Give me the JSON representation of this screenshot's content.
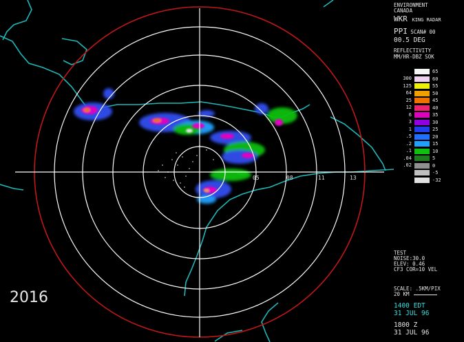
{
  "header": {
    "agency_line1": "ENVIRONMENT",
    "agency_line2": "CANADA",
    "station": "WKR",
    "station_name": "KING RADAR"
  },
  "scan": {
    "mode": "PPI",
    "scan_label": "SCAN# 00",
    "angle": "00.5 DEG",
    "product": "REFLECTIVITY",
    "units": "MM/HR-DBZ",
    "units_extra": "SOK"
  },
  "legend": {
    "left_values": [
      "300",
      "125",
      "64",
      "25",
      "12",
      "6",
      "3",
      "1",
      ".5",
      ".2",
      ".1",
      ".04",
      ".02"
    ],
    "items": [
      {
        "dbz": "65",
        "color": "#f4f4f4"
      },
      {
        "dbz": "60",
        "color": "#f0d0f0"
      },
      {
        "dbz": "55",
        "color": "#f0f000"
      },
      {
        "dbz": "50",
        "color": "#f0a000"
      },
      {
        "dbz": "45",
        "color": "#f07000"
      },
      {
        "dbz": "40",
        "color": "#f02070"
      },
      {
        "dbz": "35",
        "color": "#e000c0"
      },
      {
        "dbz": "30",
        "color": "#9000e0"
      },
      {
        "dbz": "25",
        "color": "#2040f0"
      },
      {
        "dbz": "20",
        "color": "#2070ff"
      },
      {
        "dbz": "15",
        "color": "#20a0ff"
      },
      {
        "dbz": "10",
        "color": "#10c010"
      },
      {
        "dbz": "5",
        "color": "#207a20"
      },
      {
        "dbz": "0",
        "color": "#909090"
      },
      {
        "dbz": "-5",
        "color": "#c0c0c0"
      },
      {
        "dbz": "-32",
        "color": "#e0e0e0"
      }
    ]
  },
  "info": {
    "test": "TEST",
    "noise": "NOISE:30.0",
    "elev": "ELEV: 0.46",
    "filter": "CF3 COR=10 VEL",
    "scale": "SCALE: .5KM/PIX",
    "scale_bar": "20 KM"
  },
  "time": {
    "local": "1400 EDT",
    "local_date": "31 JUL 96",
    "utc": "1800 Z",
    "utc_date": "31 JUL 96"
  },
  "ring_labels": [
    "05",
    "08",
    "11",
    "13"
  ],
  "watermark_year": "2016"
}
